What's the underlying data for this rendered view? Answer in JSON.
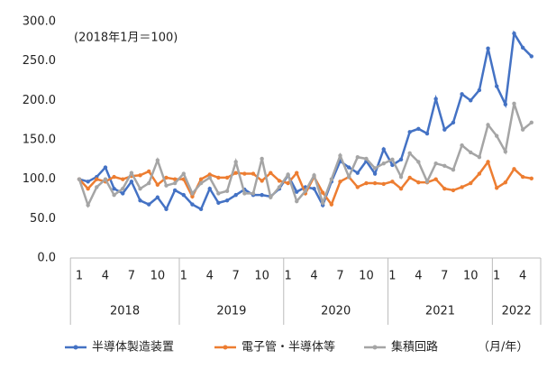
{
  "chart_data": {
    "type": "line",
    "annotation": "(2018年1月＝100)",
    "x_label": "（月/年）",
    "categories": [
      "1",
      null,
      null,
      "4",
      null,
      null,
      "7",
      null,
      null,
      "10",
      null,
      null,
      "1",
      null,
      null,
      "4",
      null,
      null,
      "7",
      null,
      null,
      "10",
      null,
      null,
      "1",
      null,
      null,
      "4",
      null,
      null,
      "7",
      null,
      null,
      "10",
      null,
      null,
      "1",
      null,
      null,
      "4",
      null,
      null,
      "7",
      null,
      null,
      "10",
      null,
      null,
      "1",
      null,
      null,
      "4",
      null
    ],
    "years": [
      "2018",
      "2019",
      "2020",
      "2021",
      "2022"
    ],
    "ylim": [
      0,
      300
    ],
    "yticks": [
      {
        "value": 0,
        "label": "0.0"
      },
      {
        "value": 50,
        "label": "50.0"
      },
      {
        "value": 100,
        "label": "100.0"
      },
      {
        "value": 150,
        "label": "150.0"
      },
      {
        "value": 200,
        "label": "200.0"
      },
      {
        "value": 250,
        "label": "250.0"
      },
      {
        "value": 300,
        "label": "300.0"
      }
    ],
    "series": [
      {
        "name": "半導体製造装置",
        "color": "#4472c4",
        "values": [
          100,
          97,
          103,
          115,
          88,
          82,
          97,
          73,
          68,
          77,
          62,
          86,
          80,
          68,
          62,
          88,
          70,
          73,
          80,
          87,
          80,
          80,
          78,
          88,
          105,
          84,
          90,
          88,
          67,
          97,
          123,
          115,
          108,
          123,
          107,
          138,
          118,
          125,
          160,
          164,
          158,
          202,
          163,
          172,
          208,
          200,
          213,
          266,
          218,
          195,
          285,
          267,
          256
        ]
      },
      {
        "name": "電子管・半導体等",
        "color": "#ed7d31",
        "values": [
          100,
          88,
          100,
          97,
          103,
          100,
          104,
          105,
          110,
          93,
          102,
          100,
          100,
          78,
          100,
          106,
          102,
          102,
          108,
          107,
          107,
          98,
          108,
          98,
          95,
          108,
          82,
          103,
          83,
          68,
          97,
          103,
          90,
          95,
          95,
          94,
          97,
          88,
          102,
          96,
          96,
          100,
          88,
          86,
          90,
          95,
          107,
          122,
          89,
          96,
          113,
          103,
          101
        ]
      },
      {
        "name": "集積回路",
        "color": "#a5a5a5",
        "values": [
          100,
          67,
          90,
          100,
          80,
          88,
          108,
          88,
          95,
          124,
          92,
          95,
          107,
          82,
          95,
          102,
          82,
          85,
          122,
          82,
          82,
          126,
          77,
          90,
          106,
          72,
          85,
          105,
          70,
          100,
          130,
          103,
          128,
          126,
          114,
          120,
          125,
          103,
          133,
          122,
          97,
          120,
          117,
          112,
          143,
          134,
          128,
          169,
          155,
          135,
          196,
          163,
          172
        ]
      }
    ]
  }
}
